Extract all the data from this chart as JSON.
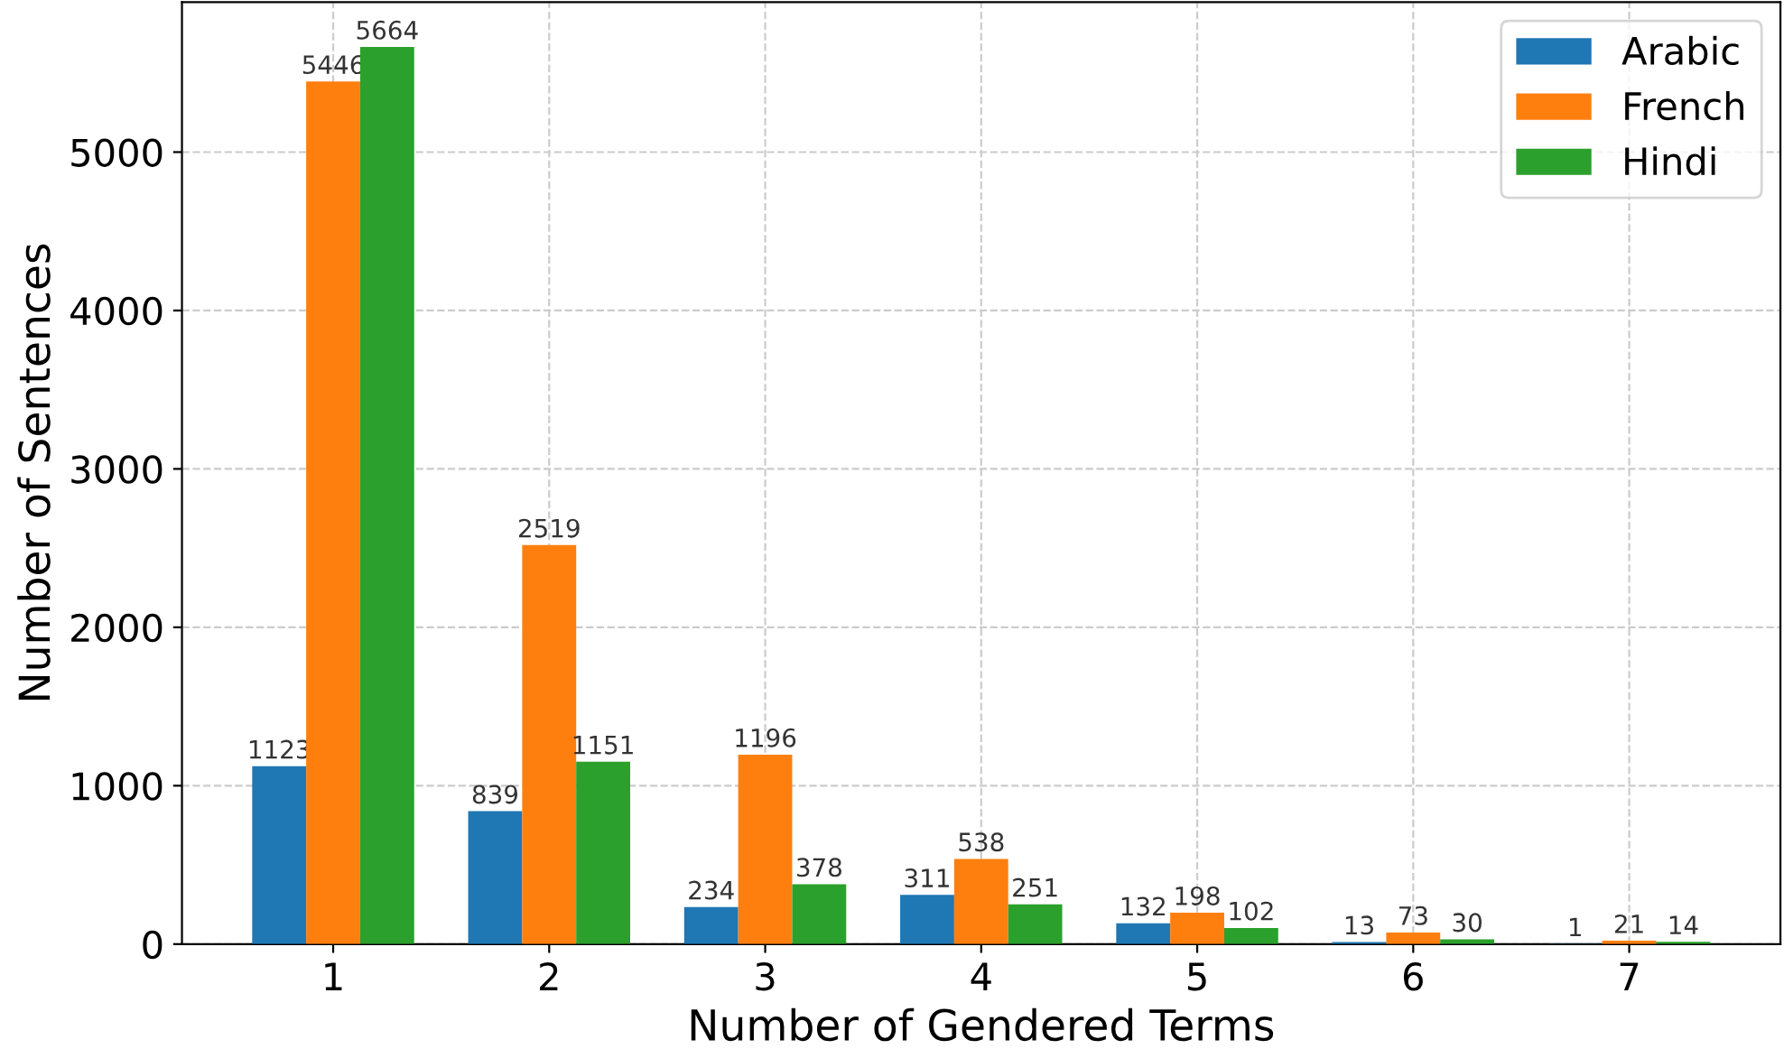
{
  "chart_data": {
    "type": "bar",
    "xlabel": "Number of Gendered Terms",
    "ylabel": "Number of Sentences",
    "categories": [
      "1",
      "2",
      "3",
      "4",
      "5",
      "6",
      "7"
    ],
    "series": [
      {
        "name": "Arabic",
        "color": "#1f77b4",
        "values": [
          1123,
          839,
          234,
          311,
          132,
          13,
          1
        ]
      },
      {
        "name": "French",
        "color": "#ff7f0e",
        "values": [
          5446,
          2519,
          1196,
          538,
          198,
          73,
          21
        ]
      },
      {
        "name": "Hindi",
        "color": "#2ca02c",
        "values": [
          5664,
          1151,
          378,
          251,
          102,
          30,
          14
        ]
      }
    ],
    "ylim": [
      0,
      5947
    ],
    "yticks": [
      0,
      1000,
      2000,
      3000,
      4000,
      5000
    ],
    "grid": true,
    "legend": "top right",
    "data_labels": true
  }
}
